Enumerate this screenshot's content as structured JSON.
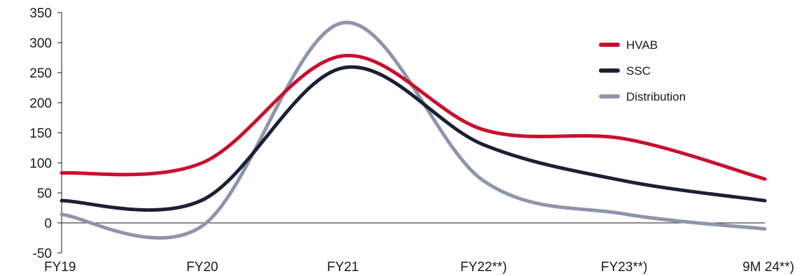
{
  "chart_data": {
    "type": "line",
    "title": "",
    "xlabel": "",
    "ylabel": "",
    "categories": [
      "FY19",
      "FY20",
      "FY21",
      "FY22**)",
      "FY23**)",
      "9M 24**)"
    ],
    "ylim": [
      -50,
      350
    ],
    "yticks": [
      -50,
      0,
      50,
      100,
      150,
      200,
      250,
      300,
      350
    ],
    "grid": false,
    "legend_position": "top-right",
    "series": [
      {
        "name": "HVAB",
        "color": "#c8102e",
        "values": [
          83,
          100,
          278,
          155,
          140,
          73
        ]
      },
      {
        "name": "SSC",
        "color": "#1b2033",
        "values": [
          37,
          38,
          258,
          130,
          70,
          37
        ]
      },
      {
        "name": "Distribution",
        "color": "#8e95aa",
        "values": [
          14,
          -5,
          333,
          70,
          15,
          -10
        ]
      }
    ]
  }
}
